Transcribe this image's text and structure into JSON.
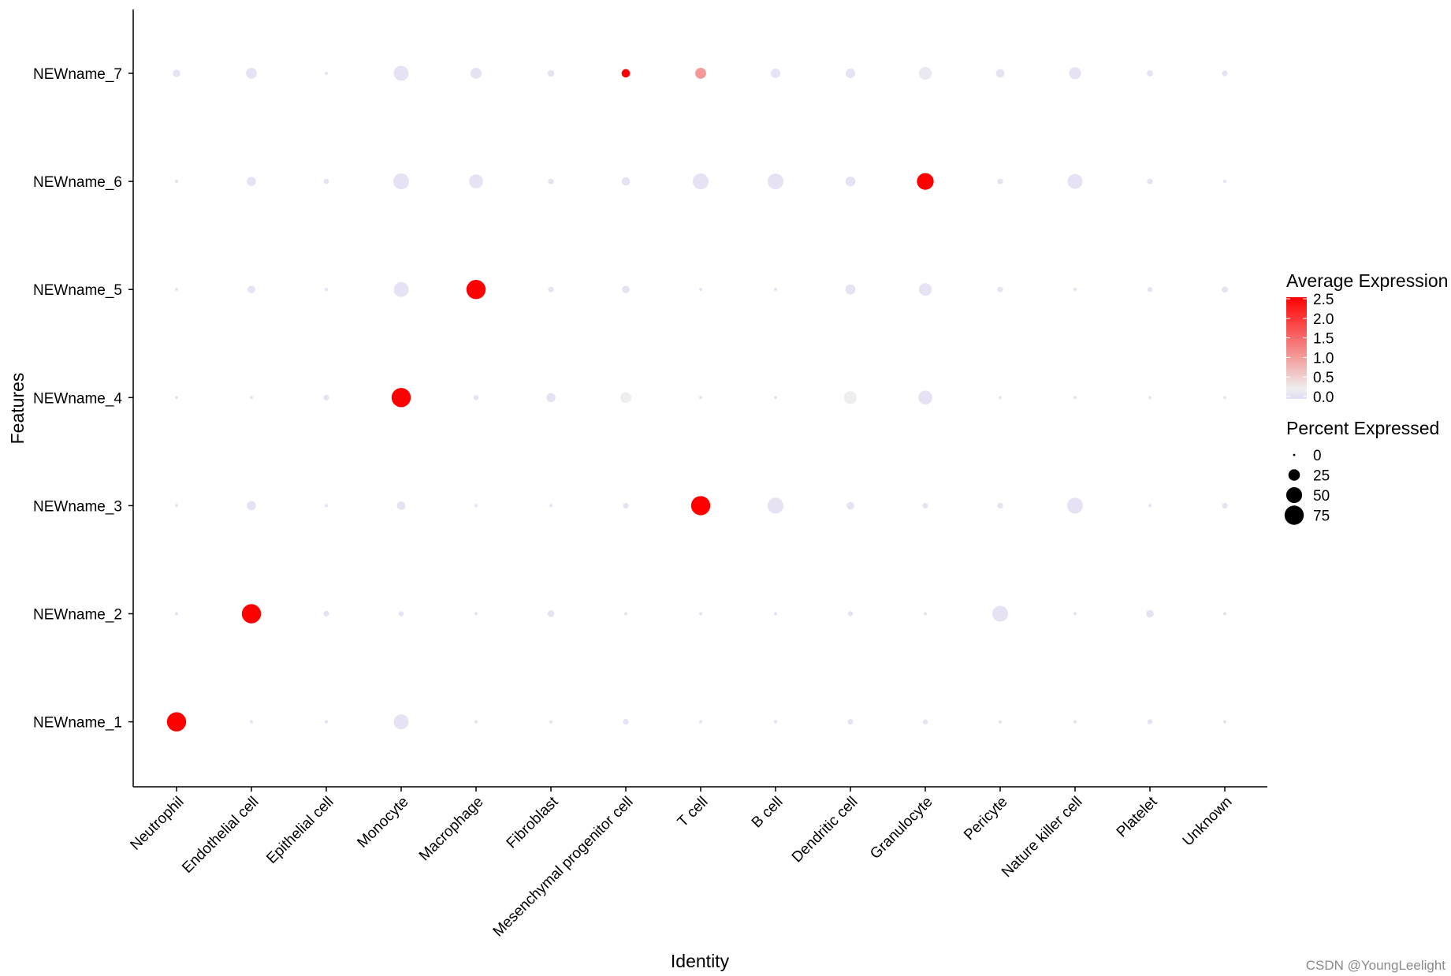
{
  "chart_data": {
    "type": "scatter",
    "subtype": "dot-plot",
    "xlabel": "Identity",
    "ylabel": "Features",
    "categories": [
      "Neutrophil",
      "Endothelial cell",
      "Epithelial cell",
      "Monocyte",
      "Macrophage",
      "Fibroblast",
      "Mesenchymal progenitor cell",
      "T cell",
      "B cell",
      "Dendritic cell",
      "Granulocyte",
      "Pericyte",
      "Nature killer cell",
      "Platelet",
      "Unknown"
    ],
    "features": [
      "NEWname_7",
      "NEWname_6",
      "NEWname_5",
      "NEWname_4",
      "NEWname_3",
      "NEWname_2",
      "NEWname_1"
    ],
    "color_scale": {
      "low": "#e2dcf5",
      "mid": "#eeeeee",
      "high": "#ff0000",
      "range": [
        -0.3,
        2.5
      ]
    },
    "series": [
      {
        "feature": "NEWname_7",
        "pct": [
          8,
          18,
          1,
          35,
          18,
          6,
          10,
          18,
          13,
          13,
          25,
          10,
          22,
          5,
          4
        ],
        "avg": [
          -0.2,
          -0.2,
          -0.2,
          -0.2,
          -0.2,
          -0.2,
          2.5,
          0.9,
          -0.2,
          -0.2,
          -0.1,
          -0.2,
          -0.2,
          -0.2,
          -0.2
        ]
      },
      {
        "feature": "NEWname_6",
        "pct": [
          1,
          12,
          3,
          40,
          30,
          4,
          10,
          40,
          40,
          15,
          45,
          4,
          35,
          4,
          1
        ],
        "avg": [
          -0.2,
          -0.2,
          -0.2,
          -0.2,
          -0.2,
          -0.2,
          -0.2,
          -0.2,
          -0.2,
          -0.2,
          2.5,
          -0.2,
          -0.2,
          -0.2,
          -0.2
        ]
      },
      {
        "feature": "NEWname_5",
        "pct": [
          1,
          8,
          1,
          35,
          60,
          4,
          8,
          1,
          1,
          15,
          25,
          4,
          1,
          3,
          5
        ],
        "avg": [
          -0.2,
          -0.2,
          -0.2,
          -0.2,
          2.5,
          -0.2,
          -0.2,
          -0.2,
          -0.2,
          -0.2,
          -0.2,
          -0.2,
          -0.2,
          -0.2,
          -0.2
        ]
      },
      {
        "feature": "NEWname_4",
        "pct": [
          1,
          1,
          4,
          60,
          3,
          12,
          18,
          1,
          1,
          25,
          30,
          1,
          1,
          1,
          1
        ],
        "avg": [
          -0.2,
          -0.2,
          -0.2,
          2.5,
          -0.2,
          -0.2,
          0.0,
          -0.2,
          -0.2,
          0.0,
          -0.2,
          -0.2,
          -0.2,
          -0.2,
          -0.2
        ]
      },
      {
        "feature": "NEWname_3",
        "pct": [
          1,
          12,
          1,
          10,
          1,
          1,
          4,
          60,
          40,
          8,
          4,
          4,
          40,
          1,
          4
        ],
        "avg": [
          -0.2,
          -0.2,
          -0.2,
          -0.2,
          -0.2,
          -0.2,
          -0.2,
          2.5,
          -0.2,
          -0.2,
          -0.2,
          -0.2,
          -0.2,
          -0.2,
          -0.2
        ]
      },
      {
        "feature": "NEWname_2",
        "pct": [
          1,
          60,
          4,
          3,
          1,
          6,
          1,
          1,
          1,
          3,
          1,
          40,
          1,
          8,
          1
        ],
        "avg": [
          -0.2,
          2.5,
          -0.2,
          -0.2,
          -0.2,
          -0.2,
          -0.2,
          -0.2,
          -0.2,
          -0.2,
          -0.2,
          -0.2,
          -0.2,
          -0.2,
          -0.2
        ]
      },
      {
        "feature": "NEWname_1",
        "pct": [
          60,
          1,
          1,
          35,
          1,
          1,
          4,
          1,
          1,
          4,
          3,
          1,
          1,
          3,
          1
        ],
        "avg": [
          2.5,
          -0.2,
          -0.2,
          -0.2,
          -0.2,
          -0.2,
          -0.2,
          -0.2,
          -0.2,
          -0.2,
          -0.2,
          -0.2,
          -0.2,
          -0.2,
          -0.2
        ]
      }
    ],
    "legend_color": {
      "title": "Average Expression",
      "ticks": [
        "2.5",
        "2.0",
        "1.5",
        "1.0",
        "0.5",
        "0.0"
      ]
    },
    "legend_size": {
      "title": "Percent Expressed",
      "ticks": [
        "0",
        "25",
        "50",
        "75"
      ]
    }
  },
  "watermark": "CSDN @YoungLeelight"
}
